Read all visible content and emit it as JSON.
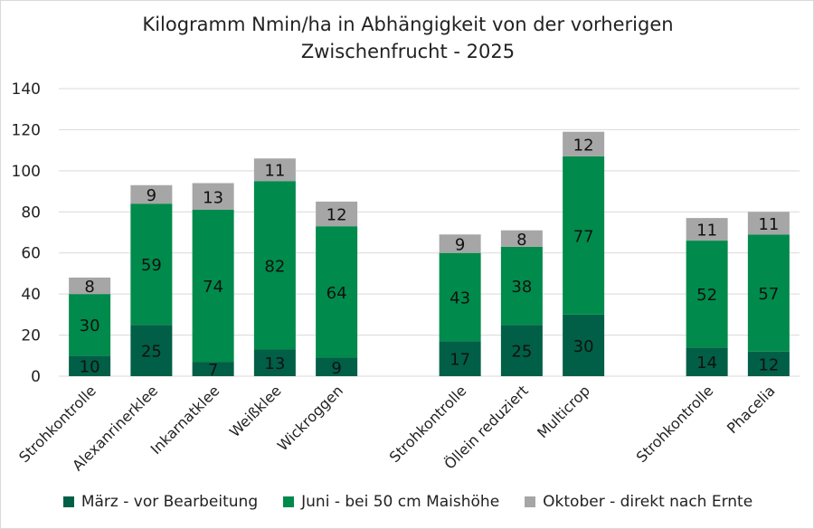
{
  "chart_data": {
    "type": "stacked-bar",
    "title": [
      "Kilogramm Nmin/ha in Abhängigkeit von der vorherigen",
      "Zwischenfrucht - 2025"
    ],
    "xlabel": "",
    "ylabel": "",
    "ylim": [
      0,
      140
    ],
    "yticks": [
      "0",
      "20",
      "40",
      "60",
      "80",
      "100",
      "120",
      "140"
    ],
    "grid": true,
    "legend_position": "bottom",
    "categories": [
      "Strohkontrolle",
      "Alexanrinerklee",
      "Inkarnatklee",
      "Weißklee",
      "Wickroggen",
      "",
      "Strohkontrolle",
      "Öllein reduziert",
      "Multicrop",
      "",
      "Strohkontrolle",
      "Phacelia"
    ],
    "series": [
      {
        "name": "März - vor Bearbeitung",
        "color": "#005f46",
        "values": [
          10,
          25,
          7,
          13,
          9,
          null,
          17,
          25,
          30,
          null,
          14,
          12
        ]
      },
      {
        "name": "Juni - bei 50 cm Maishöhe",
        "color": "#008a4b",
        "values": [
          30,
          59,
          74,
          82,
          64,
          null,
          43,
          38,
          77,
          null,
          52,
          57
        ]
      },
      {
        "name": "Oktober - direkt nach Ernte",
        "color": "#a6a6a6",
        "values": [
          8,
          9,
          13,
          11,
          12,
          null,
          9,
          8,
          12,
          null,
          11,
          11
        ]
      }
    ]
  }
}
